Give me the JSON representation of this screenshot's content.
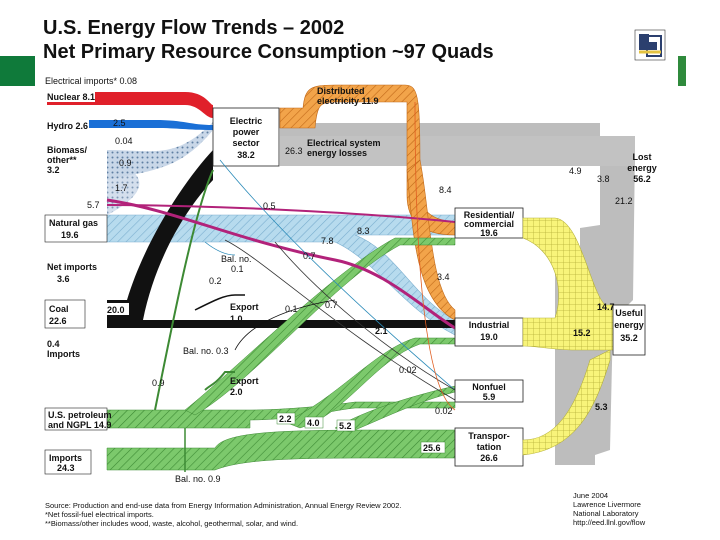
{
  "title": {
    "line1": "U.S. Energy Flow Trends – 2002",
    "line2": "Net Primary Resource Consumption ~97 Quads"
  },
  "sources": {
    "electrical_imports": "Electrical imports* 0.08",
    "nuclear": "Nuclear 8.1",
    "hydro": "Hydro 2.6",
    "biomass_1": "Biomass/",
    "biomass_2": "other**",
    "biomass_3": "3.2",
    "natural_gas_1": "Natural gas",
    "natural_gas_2": "19.6",
    "net_imports_1": "Net imports",
    "net_imports_2": "3.6",
    "coal_1": "Coal",
    "coal_2": "22.6",
    "coal_imports_1": "0.4",
    "coal_imports_2": "Imports",
    "petroleum_1": "U.S. petroleum",
    "petroleum_2": "and NGPL 14.9",
    "imports_1": "Imports",
    "imports_2": "24.3"
  },
  "nodes": {
    "electric_1": "Electric",
    "electric_2": "power",
    "electric_3": "sector",
    "electric_4": "38.2",
    "distributed_1": "Distributed",
    "distributed_2": "electricity 11.9",
    "losses_1": "Electrical system",
    "losses_2": "energy losses",
    "lost_1": "Lost",
    "lost_2": "energy",
    "lost_3": "56.2",
    "residential_1": "Residential/",
    "residential_2": "commercial",
    "residential_3": "19.6",
    "industrial_1": "Industrial",
    "industrial_2": "19.0",
    "nonfuel_1": "Nonfuel",
    "nonfuel_2": "5.9",
    "transport_1": "Transpor-",
    "transport_2": "tation",
    "transport_3": "26.6",
    "useful_1": "Useful",
    "useful_2": "energy",
    "useful_3": "35.2",
    "export_coal_1": "Export",
    "export_coal_2": "1.0",
    "export_pet_1": "Export",
    "export_pet_2": "2.0",
    "bal_gas_1": "Bal. no.",
    "bal_gas_2": "0.1",
    "bal_coal": "Bal. no. 0.3",
    "bal_pet": "Bal. no. 0.9"
  },
  "flow_values": {
    "v_2_5": "2.5",
    "v_0_04": "0.04",
    "v_0_9a": "0.9",
    "v_1_7": "1.7",
    "v_5_7": "5.7",
    "v_26_3": "26.3",
    "v_0_5": "0.5",
    "v_8_4": "8.4",
    "v_4_9": "4.9",
    "v_3_8": "3.8",
    "v_21_2": "21.2",
    "v_8_3": "8.3",
    "v_7_8": "7.8",
    "v_0_7a": "0.7",
    "v_0_2": "0.2",
    "v_3_4": "3.4",
    "v_20_0": "20.0",
    "v_0_1": "0.1",
    "v_0_7b": "0.7",
    "v_2_1": "2.1",
    "v_14_7": "14.7",
    "v_15_2": "15.2",
    "v_0_9b": "0.9",
    "v_0_02a": "0.02",
    "v_0_02b": "0.02",
    "v_5_3": "5.3",
    "v_2_2": "2.2",
    "v_4_0": "4.0",
    "v_5_2": "5.2",
    "v_25_6": "25.6"
  },
  "footer": {
    "source_1": "Source: Production and end-use data from Energy Information Administration, Annual Energy Review 2002.",
    "source_2": "*Net fossil-fuel electrical imports.",
    "source_3": "**Biomass/other includes wood, waste, alcohol, geothermal, solar, and wind.",
    "date": "June 2004",
    "org_1": "Lawrence Livermore",
    "org_2": "National Laboratory",
    "url": "http://eed.llnl.gov/flow"
  },
  "colors": {
    "nuclear": "#e0202a",
    "hydro": "#1a6fd6",
    "biomass": "#6a8fb6",
    "gas": "#a9d3e8",
    "coal": "#111111",
    "petroleum": "#6fbf62",
    "electric": "#f19a3e",
    "losses": "#b8b8b8",
    "useful": "#f6f38a",
    "magenta": "#b2227a"
  }
}
